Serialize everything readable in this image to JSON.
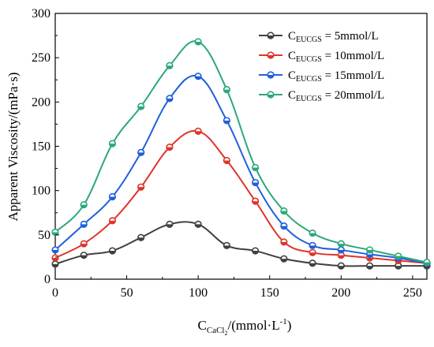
{
  "chart_data": {
    "type": "line",
    "xlabel": {
      "main": "C",
      "sub": "CaCl",
      "sub2": "2",
      "unit": "/(mmol·L",
      "sup": "-1",
      "close": ")"
    },
    "ylabel": "Apparent Viscosity/(mPa·s)",
    "xlim": [
      0,
      260
    ],
    "ylim": [
      0,
      300
    ],
    "xticks": [
      0,
      50,
      100,
      150,
      200,
      250
    ],
    "yticks": [
      0,
      50,
      100,
      150,
      200,
      250,
      300
    ],
    "x": [
      0,
      20,
      40,
      60,
      80,
      100,
      120,
      140,
      160,
      180,
      200,
      220,
      240,
      260
    ],
    "series": [
      {
        "name_main": "C",
        "name_sub": "EUCGS",
        "name_rest": " = 5mmol/L",
        "color": "#404040",
        "values": [
          17,
          27,
          32,
          47,
          62,
          62,
          38,
          32,
          23,
          18,
          15,
          15,
          15,
          15
        ]
      },
      {
        "name_main": "C",
        "name_sub": "EUCGS",
        "name_rest": " = 10mmol/L",
        "color": "#e0332a",
        "values": [
          24,
          40,
          66,
          104,
          149,
          167,
          134,
          88,
          42,
          30,
          27,
          24,
          21,
          18
        ]
      },
      {
        "name_main": "C",
        "name_sub": "EUCGS",
        "name_rest": " = 15mmol/L",
        "color": "#1f5fdc",
        "values": [
          33,
          62,
          93,
          143,
          204,
          229,
          179,
          109,
          60,
          38,
          33,
          28,
          24,
          18
        ]
      },
      {
        "name_main": "C",
        "name_sub": "EUCGS",
        "name_rest": " = 20mmol/L",
        "color": "#2ca87a",
        "values": [
          53,
          84,
          153,
          195,
          241,
          268,
          214,
          126,
          77,
          52,
          40,
          33,
          26,
          19
        ]
      }
    ],
    "grid": false,
    "legend_position": "top-right"
  }
}
